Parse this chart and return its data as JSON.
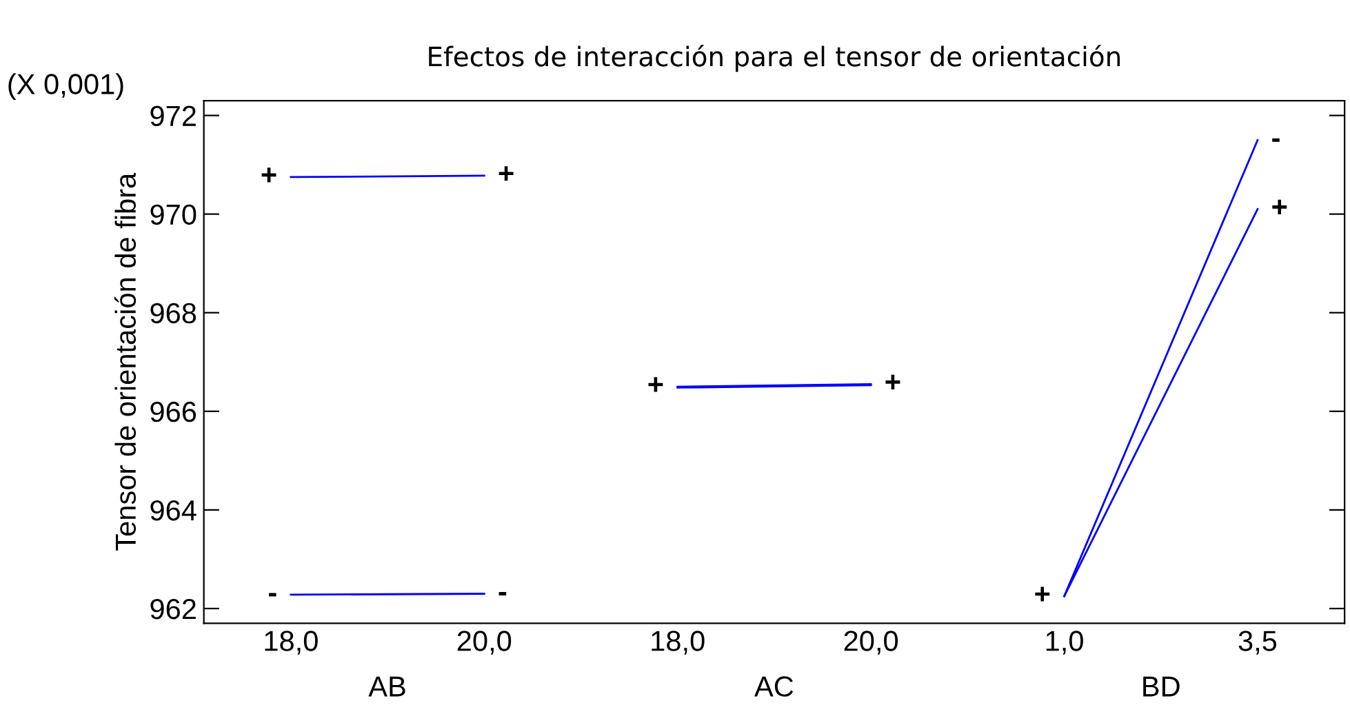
{
  "chart_data": {
    "type": "line",
    "title": "Efectos de interacción para el tensor de orientación",
    "ylabel": "Tensor de orientación de fibra",
    "annotations": [
      "(X 0,001)",
      "AB",
      "AC",
      "BD"
    ],
    "categories": [
      "18,0",
      "20,0",
      "18,0",
      "20,0",
      "1,0",
      "3,5"
    ],
    "series": [
      {
        "name": "+",
        "color": "#0000ff",
        "values": [
          970.75,
          970.78,
          null,
          null,
          null,
          null
        ]
      },
      {
        "name": "-",
        "color": "#0000ff",
        "values": [
          962.28,
          962.3,
          null,
          null,
          null,
          null
        ]
      },
      {
        "name": "+",
        "color": "#0000ff",
        "values": [
          null,
          null,
          966.5,
          966.55,
          null,
          null
        ]
      },
      {
        "color": "#0000ff",
        "values": [
          null,
          null,
          966.48,
          966.53,
          null,
          null
        ]
      },
      {
        "name": "+",
        "color": "#0000ff",
        "values": [
          null,
          null,
          null,
          null,
          962.25,
          970.1
        ]
      },
      {
        "name": "-",
        "color": "#0000ff",
        "values": [
          null,
          null,
          null,
          null,
          962.25,
          971.5
        ]
      }
    ],
    "ylim": [
      961.7,
      972.3
    ],
    "yticks": [
      962,
      964,
      966,
      968,
      970,
      972
    ],
    "grid": false,
    "legend": false
  }
}
